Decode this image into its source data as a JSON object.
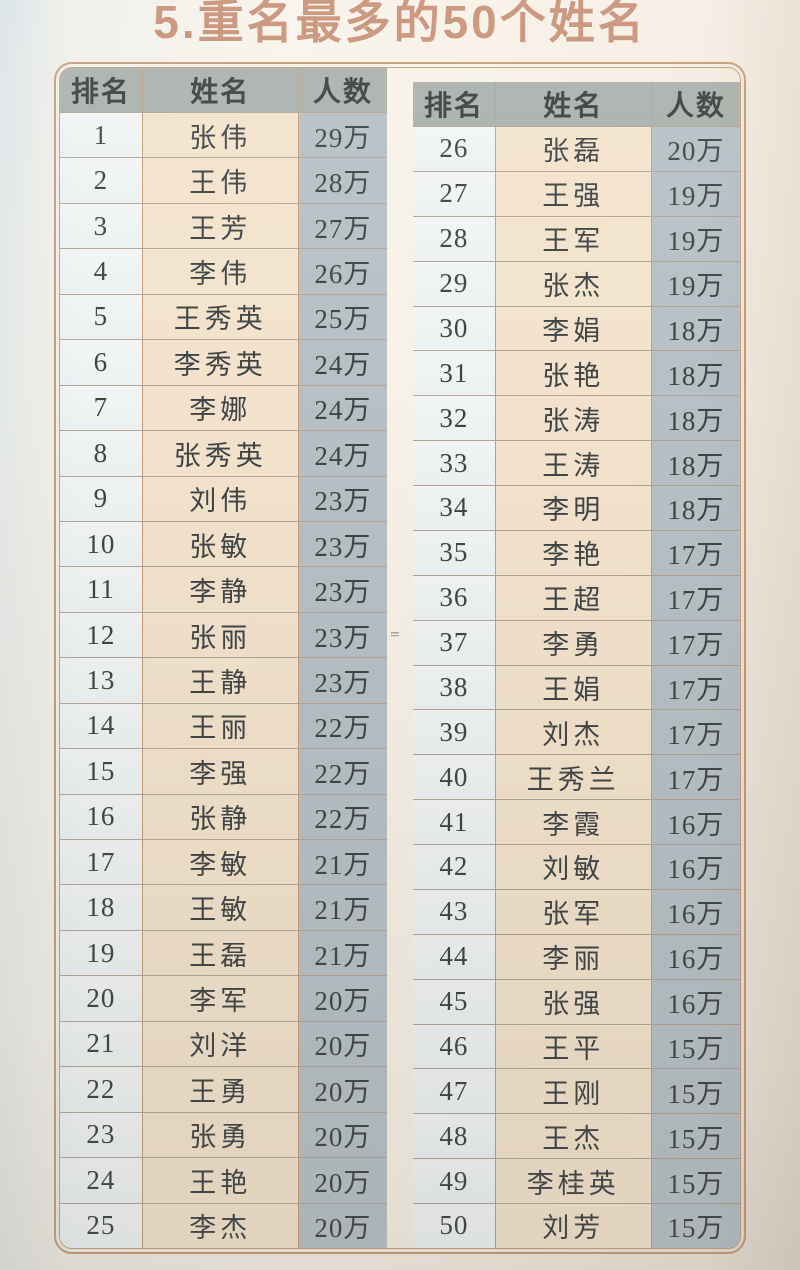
{
  "page": {
    "title": "5.重名最多的50个姓名",
    "gap_mark": "="
  },
  "colors": {
    "title_text": "#c78f74",
    "frame_border": "#c39a76",
    "header_bg": "#a9b1ac",
    "rank_col_bg": "#f0f4f4",
    "name_col_bg": "#f3e3cc",
    "count_col_bg": "#b6c0c5",
    "cell_text": "#3e4345"
  },
  "table": {
    "headers": {
      "rank": "排名",
      "name": "姓名",
      "count": "人数"
    },
    "left_rows": [
      {
        "rank": "1",
        "name": "张伟",
        "count": "29万"
      },
      {
        "rank": "2",
        "name": "王伟",
        "count": "28万"
      },
      {
        "rank": "3",
        "name": "王芳",
        "count": "27万"
      },
      {
        "rank": "4",
        "name": "李伟",
        "count": "26万"
      },
      {
        "rank": "5",
        "name": "王秀英",
        "count": "25万"
      },
      {
        "rank": "6",
        "name": "李秀英",
        "count": "24万"
      },
      {
        "rank": "7",
        "name": "李娜",
        "count": "24万"
      },
      {
        "rank": "8",
        "name": "张秀英",
        "count": "24万"
      },
      {
        "rank": "9",
        "name": "刘伟",
        "count": "23万"
      },
      {
        "rank": "10",
        "name": "张敏",
        "count": "23万"
      },
      {
        "rank": "11",
        "name": "李静",
        "count": "23万"
      },
      {
        "rank": "12",
        "name": "张丽",
        "count": "23万"
      },
      {
        "rank": "13",
        "name": "王静",
        "count": "23万"
      },
      {
        "rank": "14",
        "name": "王丽",
        "count": "22万"
      },
      {
        "rank": "15",
        "name": "李强",
        "count": "22万"
      },
      {
        "rank": "16",
        "name": "张静",
        "count": "22万"
      },
      {
        "rank": "17",
        "name": "李敏",
        "count": "21万"
      },
      {
        "rank": "18",
        "name": "王敏",
        "count": "21万"
      },
      {
        "rank": "19",
        "name": "王磊",
        "count": "21万"
      },
      {
        "rank": "20",
        "name": "李军",
        "count": "20万"
      },
      {
        "rank": "21",
        "name": "刘洋",
        "count": "20万"
      },
      {
        "rank": "22",
        "name": "王勇",
        "count": "20万"
      },
      {
        "rank": "23",
        "name": "张勇",
        "count": "20万"
      },
      {
        "rank": "24",
        "name": "王艳",
        "count": "20万"
      },
      {
        "rank": "25",
        "name": "李杰",
        "count": "20万"
      }
    ],
    "right_rows": [
      {
        "rank": "26",
        "name": "张磊",
        "count": "20万"
      },
      {
        "rank": "27",
        "name": "王强",
        "count": "19万"
      },
      {
        "rank": "28",
        "name": "王军",
        "count": "19万"
      },
      {
        "rank": "29",
        "name": "张杰",
        "count": "19万"
      },
      {
        "rank": "30",
        "name": "李娟",
        "count": "18万"
      },
      {
        "rank": "31",
        "name": "张艳",
        "count": "18万"
      },
      {
        "rank": "32",
        "name": "张涛",
        "count": "18万"
      },
      {
        "rank": "33",
        "name": "王涛",
        "count": "18万"
      },
      {
        "rank": "34",
        "name": "李明",
        "count": "18万"
      },
      {
        "rank": "35",
        "name": "李艳",
        "count": "17万"
      },
      {
        "rank": "36",
        "name": "王超",
        "count": "17万"
      },
      {
        "rank": "37",
        "name": "李勇",
        "count": "17万"
      },
      {
        "rank": "38",
        "name": "王娟",
        "count": "17万"
      },
      {
        "rank": "39",
        "name": "刘杰",
        "count": "17万"
      },
      {
        "rank": "40",
        "name": "王秀兰",
        "count": "17万"
      },
      {
        "rank": "41",
        "name": "李霞",
        "count": "16万"
      },
      {
        "rank": "42",
        "name": "刘敏",
        "count": "16万"
      },
      {
        "rank": "43",
        "name": "张军",
        "count": "16万"
      },
      {
        "rank": "44",
        "name": "李丽",
        "count": "16万"
      },
      {
        "rank": "45",
        "name": "张强",
        "count": "16万"
      },
      {
        "rank": "46",
        "name": "王平",
        "count": "15万"
      },
      {
        "rank": "47",
        "name": "王刚",
        "count": "15万"
      },
      {
        "rank": "48",
        "name": "王杰",
        "count": "15万"
      },
      {
        "rank": "49",
        "name": "李桂英",
        "count": "15万"
      },
      {
        "rank": "50",
        "name": "刘芳",
        "count": "15万"
      }
    ]
  }
}
